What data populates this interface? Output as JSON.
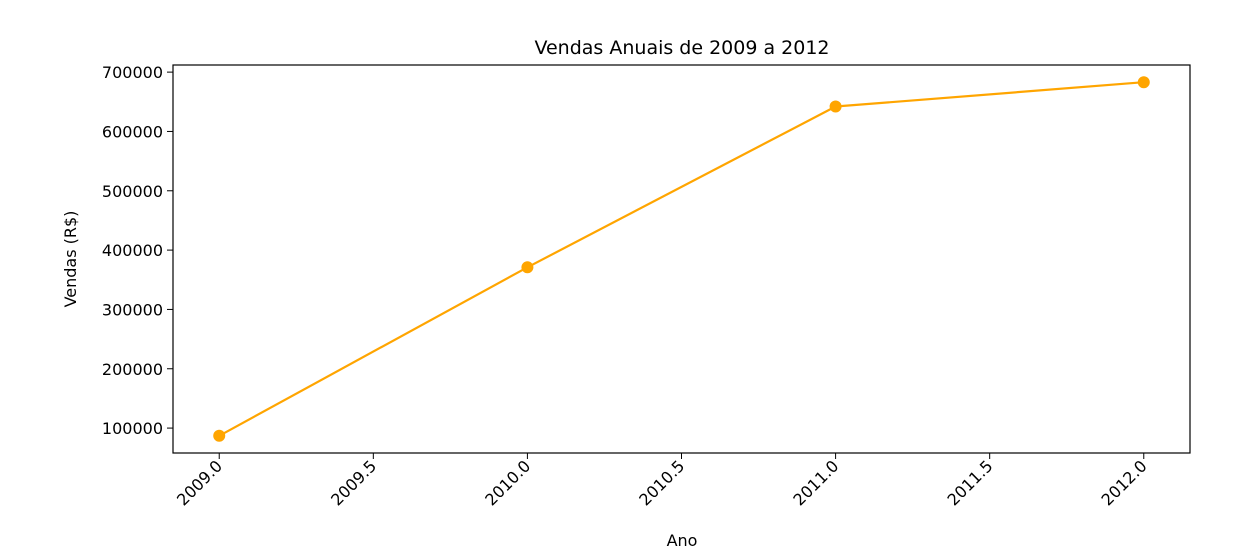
{
  "chart_data": {
    "type": "line",
    "title": "Vendas Anuais de 2009 a 2012",
    "xlabel": "Ano",
    "ylabel": "Vendas (R$)",
    "x": [
      2009,
      2010,
      2011,
      2012
    ],
    "series": [
      {
        "values": [
          87000,
          371000,
          642000,
          683000
        ],
        "color": "#ffa500",
        "marker": "circle"
      }
    ],
    "xlim": [
      2008.85,
      2012.15
    ],
    "ylim": [
      58000,
      712000
    ],
    "xticks": [
      2009.0,
      2009.5,
      2010.0,
      2010.5,
      2011.0,
      2011.5,
      2012.0
    ],
    "xtick_labels": [
      "2009.0",
      "2009.5",
      "2010.0",
      "2010.5",
      "2011.0",
      "2011.5",
      "2012.0"
    ],
    "yticks": [
      100000,
      200000,
      300000,
      400000,
      500000,
      600000,
      700000
    ],
    "ytick_labels": [
      "100000",
      "200000",
      "300000",
      "400000",
      "500000",
      "600000",
      "700000"
    ],
    "xtick_rotation_deg": 45,
    "grid": false,
    "legend": "none"
  }
}
